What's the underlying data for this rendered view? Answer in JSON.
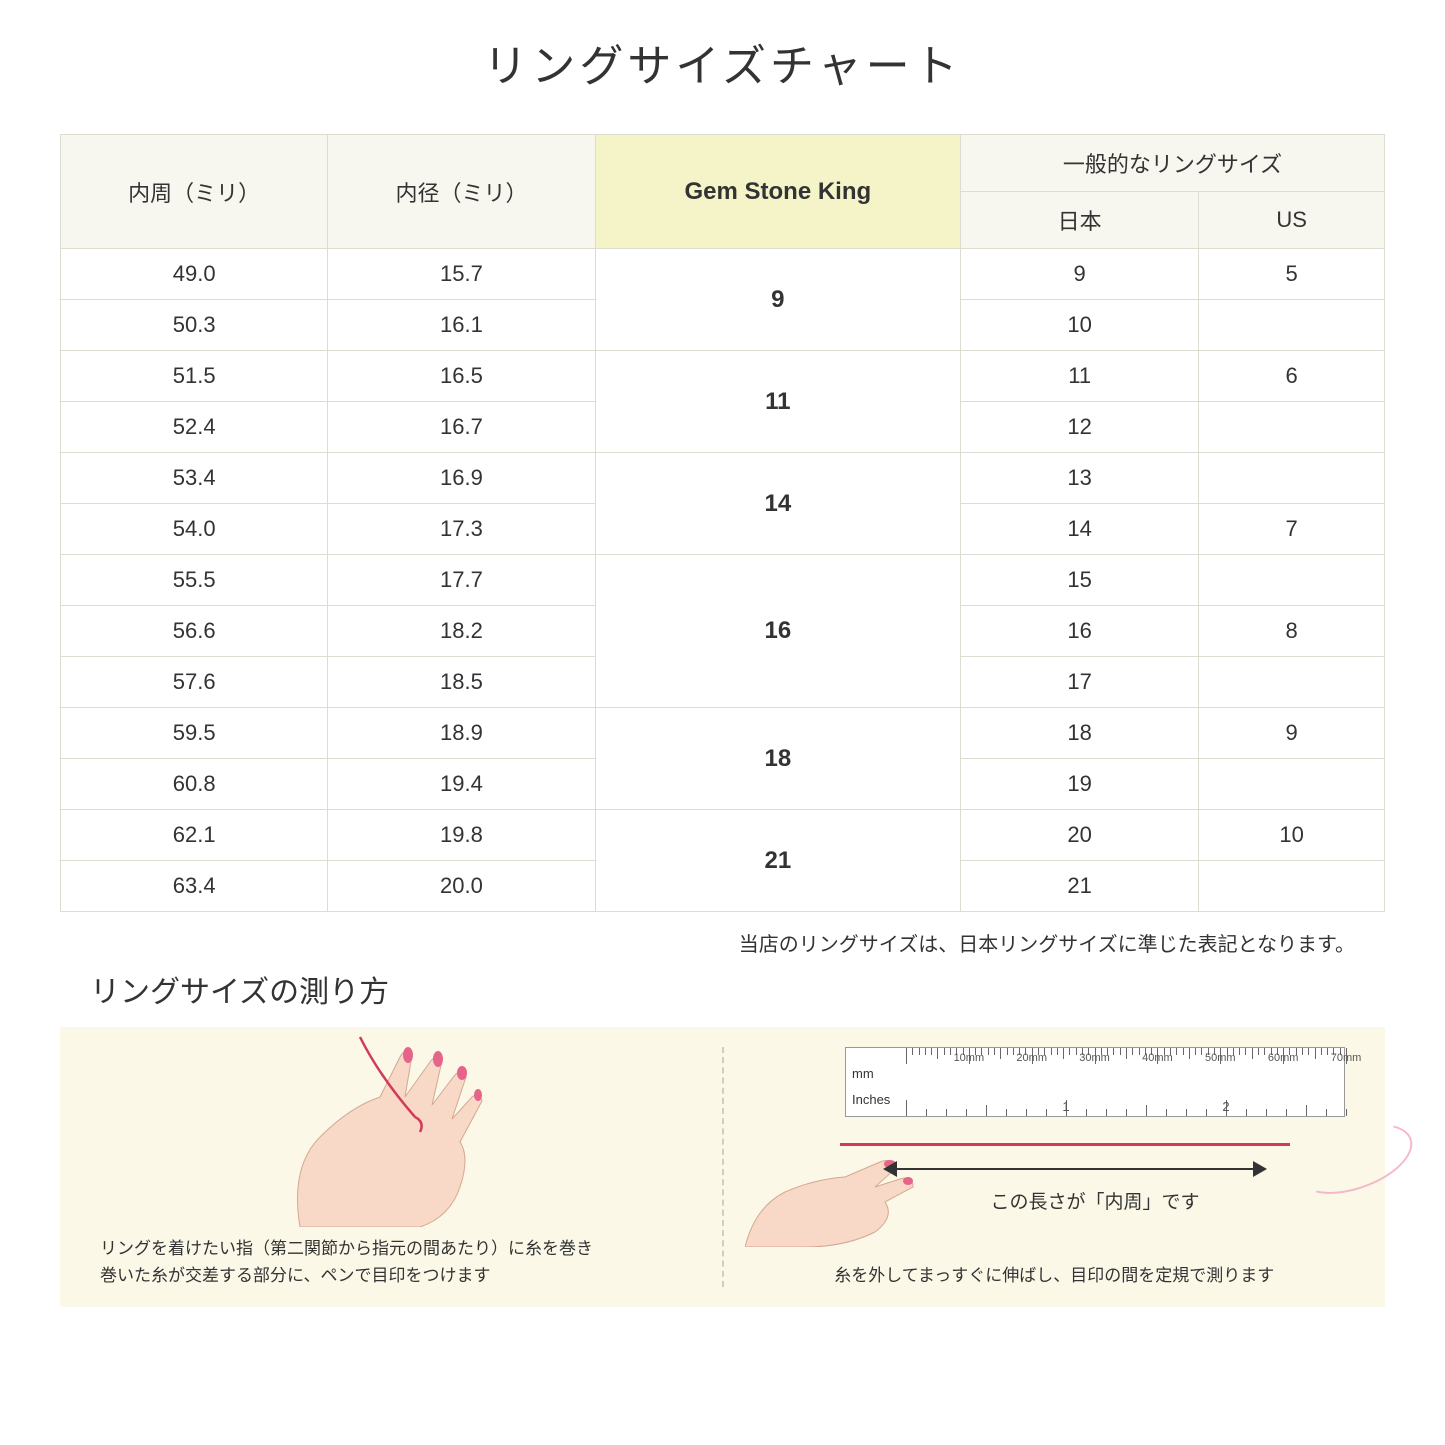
{
  "title": "リングサイズチャート",
  "table": {
    "headers": {
      "col1": "内周（ミリ）",
      "col2": "内径（ミリ）",
      "col3": "Gem Stone King",
      "col4_group": "一般的なリングサイズ",
      "col4a": "日本",
      "col4b": "US"
    },
    "groups": [
      {
        "gsk": "9",
        "rows": [
          {
            "c": "49.0",
            "d": "15.7",
            "jp": "9",
            "us": "5"
          },
          {
            "c": "50.3",
            "d": "16.1",
            "jp": "10",
            "us": ""
          }
        ]
      },
      {
        "gsk": "11",
        "rows": [
          {
            "c": "51.5",
            "d": "16.5",
            "jp": "11",
            "us": "6"
          },
          {
            "c": "52.4",
            "d": "16.7",
            "jp": "12",
            "us": ""
          }
        ]
      },
      {
        "gsk": "14",
        "rows": [
          {
            "c": "53.4",
            "d": "16.9",
            "jp": "13",
            "us": ""
          },
          {
            "c": "54.0",
            "d": "17.3",
            "jp": "14",
            "us": "7"
          }
        ]
      },
      {
        "gsk": "16",
        "rows": [
          {
            "c": "55.5",
            "d": "17.7",
            "jp": "15",
            "us": ""
          },
          {
            "c": "56.6",
            "d": "18.2",
            "jp": "16",
            "us": "8"
          },
          {
            "c": "57.6",
            "d": "18.5",
            "jp": "17",
            "us": ""
          }
        ]
      },
      {
        "gsk": "18",
        "rows": [
          {
            "c": "59.5",
            "d": "18.9",
            "jp": "18",
            "us": "9"
          },
          {
            "c": "60.8",
            "d": "19.4",
            "jp": "19",
            "us": ""
          }
        ]
      },
      {
        "gsk": "21",
        "rows": [
          {
            "c": "62.1",
            "d": "19.8",
            "jp": "20",
            "us": "10"
          },
          {
            "c": "63.4",
            "d": "20.0",
            "jp": "21",
            "us": ""
          }
        ]
      }
    ]
  },
  "note": "当店のリングサイズは、日本リングサイズに準じた表記となります。",
  "subtitle": "リングサイズの測り方",
  "panel_left_caption": "リングを着けたい指（第二関節から指元の間あたり）に糸を巻き\n巻いた糸が交差する部分に、ペンで目印をつけます",
  "panel_right_caption": "糸を外してまっすぐに伸ばし、目印の間を定規で測ります",
  "ruler": {
    "mm_label": "mm",
    "in_label": "Inches",
    "mm_marks": [
      "10mm",
      "20mm",
      "30mm",
      "40mm",
      "50mm",
      "60mm",
      "70mm"
    ],
    "in_marks": [
      "1",
      "2"
    ]
  },
  "measure_label": "この長さが「内周」です",
  "colors": {
    "header_bg": "#f7f6ef",
    "highlight_bg": "#f5f3c8",
    "border": "#dcdcd0",
    "info_bg": "#fbf8e8",
    "string": "#d23a5a",
    "skin": "#f8d9c8",
    "nail": "#e6648a"
  }
}
